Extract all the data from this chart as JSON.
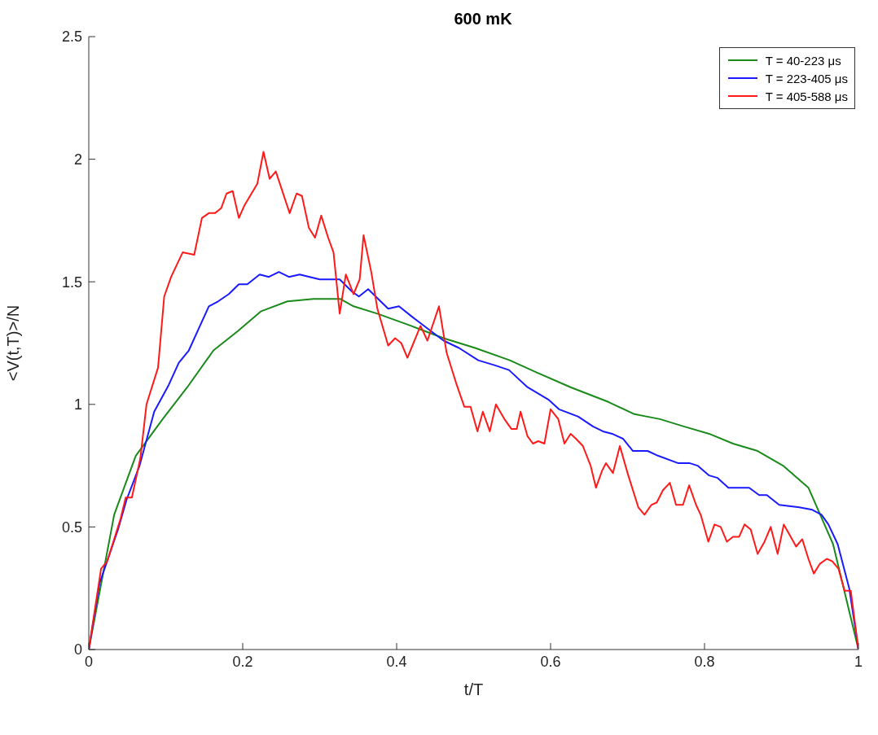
{
  "chart_data": {
    "type": "line",
    "title": "600 mK",
    "xlabel": "t/T",
    "ylabel": "<V(t,T)>/N",
    "xlim": [
      0,
      1
    ],
    "ylim": [
      0,
      2.5
    ],
    "xticks": [
      0,
      0.2,
      0.4,
      0.6,
      0.8,
      1
    ],
    "yticks": [
      0,
      0.5,
      1,
      1.5,
      2,
      2.5
    ],
    "legend": "top right",
    "marker": "none",
    "line_style": "solid",
    "series": [
      {
        "name": "T = 40-223 μs",
        "color": "#1a8a1a",
        "x": [
          0,
          0.033,
          0.061,
          0.096,
          0.128,
          0.162,
          0.194,
          0.224,
          0.258,
          0.292,
          0.327,
          0.344,
          0.375,
          0.419,
          0.461,
          0.502,
          0.547,
          0.582,
          0.626,
          0.675,
          0.709,
          0.742,
          0.773,
          0.806,
          0.837,
          0.869,
          0.902,
          0.935,
          0.967,
          1
        ],
        "values": [
          0,
          0.55,
          0.79,
          0.94,
          1.07,
          1.22,
          1.3,
          1.38,
          1.42,
          1.43,
          1.43,
          1.4,
          1.37,
          1.32,
          1.27,
          1.23,
          1.18,
          1.13,
          1.07,
          1.01,
          0.96,
          0.94,
          0.91,
          0.88,
          0.84,
          0.81,
          0.75,
          0.66,
          0.43,
          0
        ]
      },
      {
        "name": "T = 223-405 μs",
        "color": "#1a1aff",
        "x": [
          0,
          0.014,
          0.038,
          0.049,
          0.066,
          0.085,
          0.104,
          0.117,
          0.13,
          0.143,
          0.156,
          0.168,
          0.182,
          0.195,
          0.206,
          0.222,
          0.234,
          0.247,
          0.26,
          0.274,
          0.3,
          0.326,
          0.342,
          0.351,
          0.363,
          0.389,
          0.403,
          0.419,
          0.44,
          0.461,
          0.481,
          0.506,
          0.527,
          0.546,
          0.57,
          0.597,
          0.611,
          0.636,
          0.655,
          0.668,
          0.68,
          0.694,
          0.707,
          0.726,
          0.74,
          0.766,
          0.781,
          0.791,
          0.806,
          0.817,
          0.831,
          0.858,
          0.871,
          0.881,
          0.897,
          0.923,
          0.94,
          0.952,
          0.961,
          0.973,
          0.988,
          1
        ],
        "values": [
          0,
          0.27,
          0.49,
          0.61,
          0.75,
          0.97,
          1.08,
          1.17,
          1.22,
          1.31,
          1.4,
          1.42,
          1.45,
          1.49,
          1.49,
          1.53,
          1.52,
          1.54,
          1.52,
          1.53,
          1.51,
          1.51,
          1.46,
          1.44,
          1.47,
          1.39,
          1.4,
          1.36,
          1.31,
          1.26,
          1.23,
          1.18,
          1.16,
          1.14,
          1.07,
          1.02,
          0.98,
          0.95,
          0.91,
          0.89,
          0.88,
          0.86,
          0.81,
          0.81,
          0.79,
          0.76,
          0.76,
          0.75,
          0.71,
          0.7,
          0.66,
          0.66,
          0.63,
          0.63,
          0.59,
          0.58,
          0.57,
          0.55,
          0.51,
          0.43,
          0.25,
          0
        ]
      },
      {
        "name": "T = 405-588 μs",
        "color": "#ff1a1a",
        "x": [
          0,
          0.016,
          0.024,
          0.041,
          0.048,
          0.056,
          0.067,
          0.075,
          0.09,
          0.098,
          0.107,
          0.122,
          0.137,
          0.147,
          0.156,
          0.164,
          0.172,
          0.179,
          0.187,
          0.195,
          0.202,
          0.219,
          0.227,
          0.235,
          0.243,
          0.261,
          0.27,
          0.277,
          0.286,
          0.294,
          0.302,
          0.311,
          0.318,
          0.326,
          0.334,
          0.344,
          0.352,
          0.357,
          0.367,
          0.375,
          0.389,
          0.398,
          0.406,
          0.414,
          0.431,
          0.44,
          0.455,
          0.465,
          0.478,
          0.488,
          0.496,
          0.505,
          0.512,
          0.521,
          0.529,
          0.54,
          0.549,
          0.556,
          0.561,
          0.57,
          0.577,
          0.584,
          0.592,
          0.6,
          0.61,
          0.618,
          0.626,
          0.633,
          0.642,
          0.652,
          0.659,
          0.667,
          0.672,
          0.681,
          0.69,
          0.7,
          0.714,
          0.722,
          0.731,
          0.738,
          0.746,
          0.755,
          0.763,
          0.772,
          0.78,
          0.789,
          0.795,
          0.805,
          0.813,
          0.821,
          0.829,
          0.837,
          0.845,
          0.852,
          0.86,
          0.869,
          0.878,
          0.886,
          0.895,
          0.903,
          0.912,
          0.919,
          0.927,
          0.935,
          0.942,
          0.95,
          0.959,
          0.966,
          0.974,
          0.982,
          0.99,
          1
        ],
        "values": [
          0,
          0.33,
          0.36,
          0.53,
          0.62,
          0.62,
          0.78,
          1,
          1.15,
          1.44,
          1.52,
          1.62,
          1.61,
          1.76,
          1.78,
          1.78,
          1.8,
          1.86,
          1.87,
          1.76,
          1.81,
          1.9,
          2.03,
          1.92,
          1.95,
          1.78,
          1.86,
          1.85,
          1.72,
          1.68,
          1.77,
          1.68,
          1.62,
          1.37,
          1.53,
          1.45,
          1.51,
          1.69,
          1.54,
          1.39,
          1.24,
          1.27,
          1.25,
          1.19,
          1.32,
          1.26,
          1.4,
          1.21,
          1.08,
          0.99,
          0.99,
          0.89,
          0.97,
          0.89,
          1,
          0.94,
          0.9,
          0.9,
          0.97,
          0.87,
          0.84,
          0.85,
          0.84,
          0.98,
          0.94,
          0.84,
          0.88,
          0.86,
          0.83,
          0.75,
          0.66,
          0.73,
          0.76,
          0.72,
          0.83,
          0.72,
          0.58,
          0.55,
          0.59,
          0.6,
          0.65,
          0.68,
          0.59,
          0.59,
          0.67,
          0.59,
          0.55,
          0.44,
          0.51,
          0.5,
          0.44,
          0.46,
          0.46,
          0.51,
          0.49,
          0.39,
          0.44,
          0.5,
          0.39,
          0.51,
          0.46,
          0.42,
          0.45,
          0.37,
          0.31,
          0.35,
          0.37,
          0.36,
          0.33,
          0.24,
          0.24,
          0
        ]
      }
    ]
  }
}
